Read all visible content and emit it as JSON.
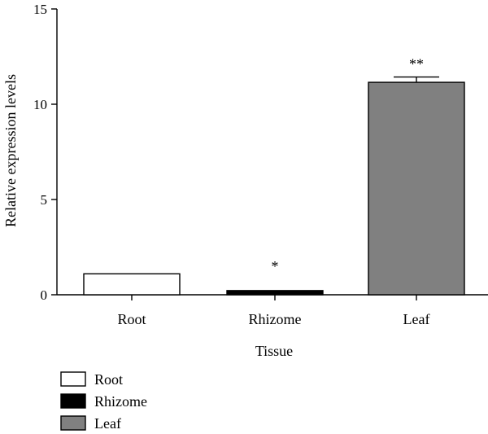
{
  "chart_data": {
    "type": "bar",
    "categories": [
      "Root",
      "Rhizome",
      "Leaf"
    ],
    "values": [
      1.1,
      0.22,
      11.15
    ],
    "errors": [
      0,
      0,
      0.28
    ],
    "significance": [
      "",
      "*",
      "**"
    ],
    "colors": [
      "#ffffff",
      "#000000",
      "#808080"
    ],
    "xlabel": "Tissue",
    "ylabel": "Relative expression levels",
    "ylim": [
      0,
      15
    ],
    "yticks": [
      0,
      5,
      10,
      15
    ],
    "legend": {
      "position": "bottom-left",
      "entries": [
        "Root",
        "Rhizome",
        "Leaf"
      ]
    },
    "grid": false
  }
}
